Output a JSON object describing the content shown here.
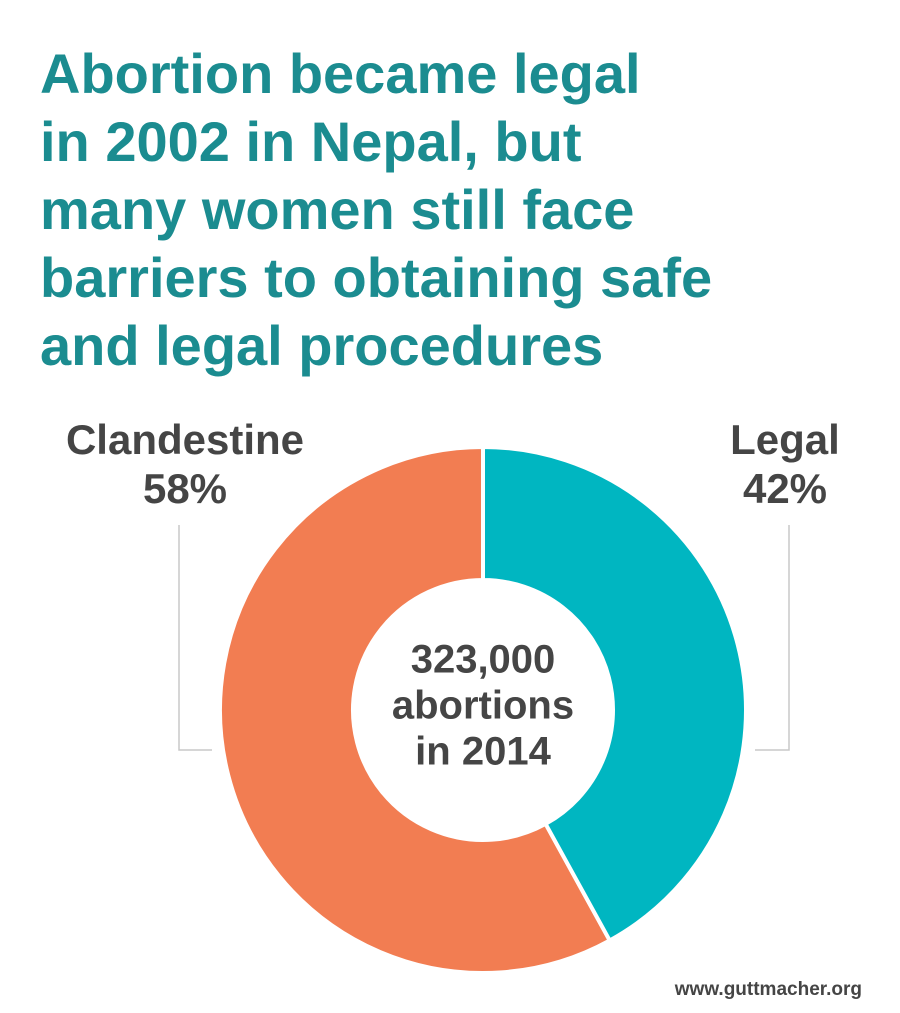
{
  "chart_data": {
    "type": "pie",
    "title": [
      "Abortion became legal",
      "in 2002 in Nepal, but",
      "many women still face",
      "barriers to obtaining safe",
      "and legal procedures"
    ],
    "categories": [
      "Clandestine",
      "Legal"
    ],
    "values": [
      58,
      42
    ],
    "value_labels": [
      "58%",
      "42%"
    ],
    "colors": [
      "#f27d52",
      "#00b6c1"
    ],
    "center_text": [
      "323,000",
      "abortions",
      "in 2014"
    ],
    "source": "www.guttmacher.org"
  }
}
